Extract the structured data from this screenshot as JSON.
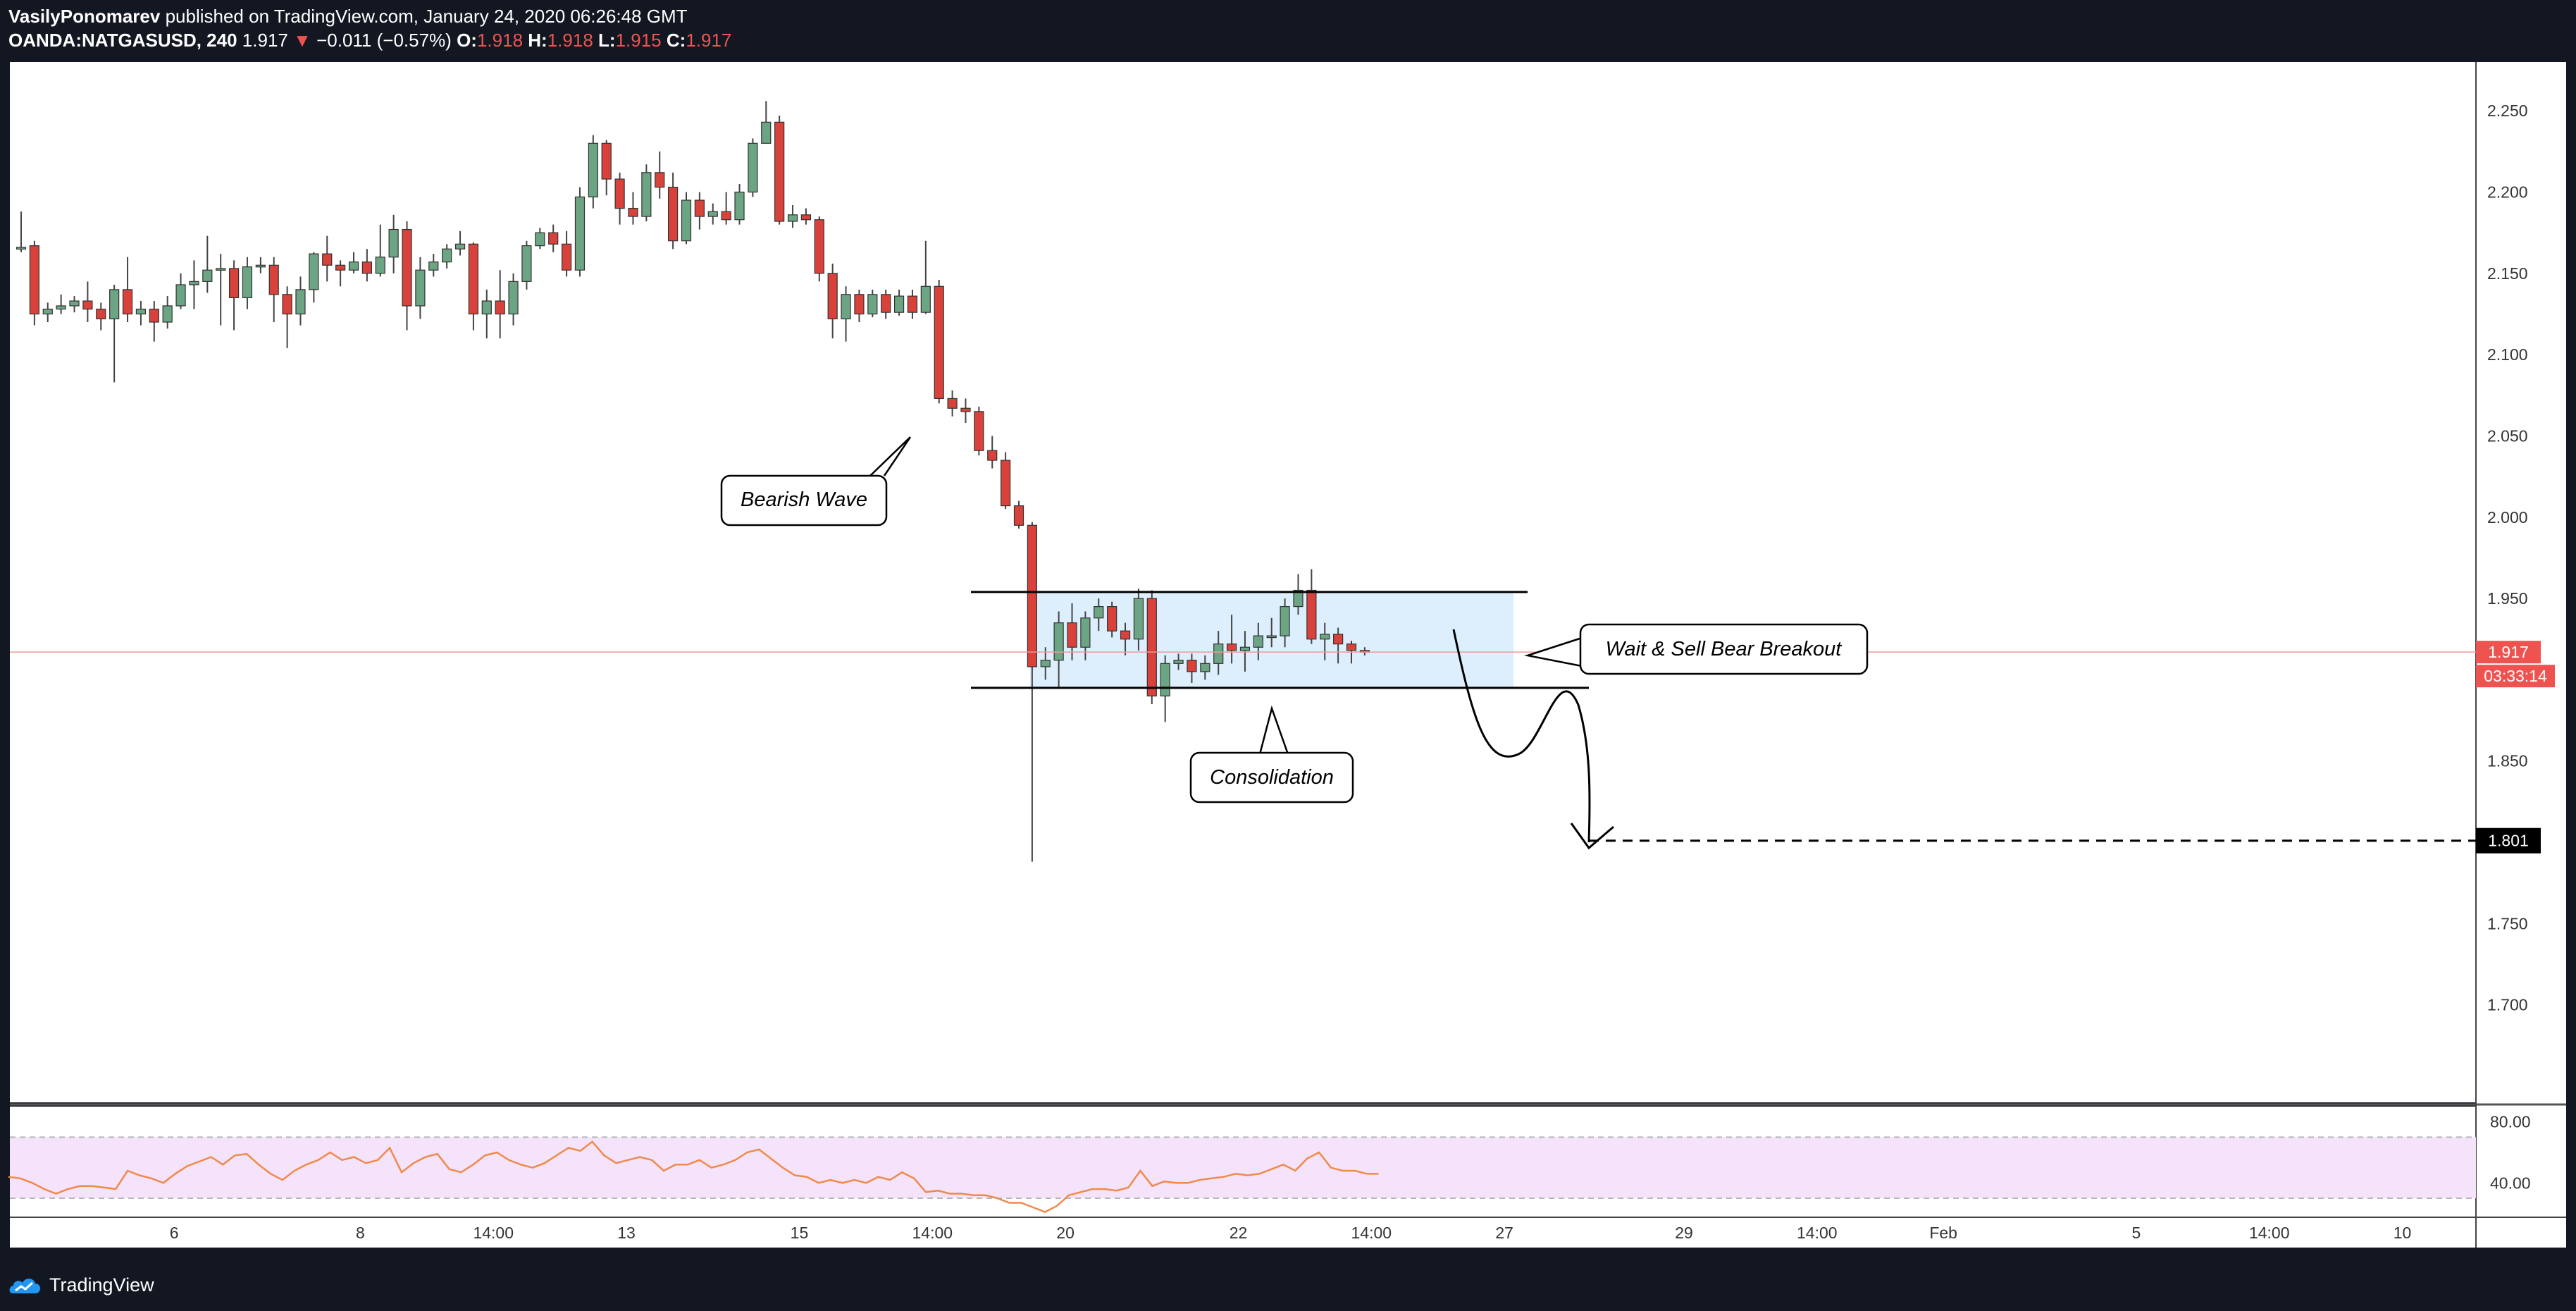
{
  "header": {
    "author": "VasilyPonomarev",
    "published": "published on TradingView.com, January 24, 2020 06:26:48 GMT",
    "symbol": "OANDA:NATGASUSD, 240",
    "last": "1.917",
    "change_arrow": "▼",
    "change": "−0.011 (−0.57%)",
    "o_label": "O:",
    "o": "1.918",
    "h_label": "H:",
    "h": "1.918",
    "l_label": "L:",
    "l": "1.915",
    "c_label": "C:",
    "c": "1.917"
  },
  "footer": {
    "brand": "TradingView"
  },
  "colors": {
    "bull": "#6ba583",
    "bear": "#d9423a",
    "rsi": "#f08a4b",
    "box": "#ddeefc",
    "rsi_band": "#f4e3fb"
  },
  "chart_data": {
    "type": "candlestick",
    "price_ylim": [
      1.64,
      2.28
    ],
    "price_ticks": [
      "2.250",
      "2.200",
      "2.150",
      "2.100",
      "2.050",
      "2.000",
      "1.950",
      "1.900",
      "1.850",
      "1.800",
      "1.750",
      "1.700"
    ],
    "x_ticks": [
      {
        "label": "6",
        "i": 11.5
      },
      {
        "label": "8",
        "i": 25.5
      },
      {
        "label": "14:00",
        "i": 35.5
      },
      {
        "label": "13",
        "i": 45.5
      },
      {
        "label": "15",
        "i": 58.5
      },
      {
        "label": "14:00",
        "i": 68.5
      },
      {
        "label": "20",
        "i": 78.5
      },
      {
        "label": "22",
        "i": 91.5
      },
      {
        "label": "14:00",
        "i": 101.5
      },
      {
        "label": "27",
        "i": 111.5
      },
      {
        "label": "29",
        "i": 125
      },
      {
        "label": "14:00",
        "i": 135
      },
      {
        "label": "Feb",
        "i": 144.5
      },
      {
        "label": "5",
        "i": 159
      },
      {
        "label": "14:00",
        "i": 169
      },
      {
        "label": "10",
        "i": 179
      }
    ],
    "candles": [
      [
        2.166,
        2.166,
        2.188,
        2.163
      ],
      [
        2.167,
        2.125,
        2.17,
        2.118
      ],
      [
        2.125,
        2.128,
        2.132,
        2.12
      ],
      [
        2.128,
        2.13,
        2.137,
        2.125
      ],
      [
        2.13,
        2.133,
        2.136,
        2.126
      ],
      [
        2.133,
        2.128,
        2.145,
        2.12
      ],
      [
        2.128,
        2.122,
        2.132,
        2.115
      ],
      [
        2.122,
        2.14,
        2.143,
        2.083
      ],
      [
        2.14,
        2.125,
        2.16,
        2.12
      ],
      [
        2.125,
        2.128,
        2.133,
        2.118
      ],
      [
        2.128,
        2.12,
        2.133,
        2.108
      ],
      [
        2.12,
        2.13,
        2.136,
        2.116
      ],
      [
        2.13,
        2.143,
        2.15,
        2.128
      ],
      [
        2.143,
        2.145,
        2.158,
        2.128
      ],
      [
        2.145,
        2.152,
        2.173,
        2.138
      ],
      [
        2.152,
        2.153,
        2.162,
        2.118
      ],
      [
        2.153,
        2.135,
        2.158,
        2.115
      ],
      [
        2.135,
        2.154,
        2.16,
        2.128
      ],
      [
        2.154,
        2.155,
        2.16,
        2.15
      ],
      [
        2.155,
        2.137,
        2.16,
        2.12
      ],
      [
        2.137,
        2.125,
        2.142,
        2.104
      ],
      [
        2.125,
        2.14,
        2.148,
        2.118
      ],
      [
        2.14,
        2.162,
        2.163,
        2.132
      ],
      [
        2.162,
        2.155,
        2.173,
        2.145
      ],
      [
        2.155,
        2.152,
        2.158,
        2.142
      ],
      [
        2.152,
        2.157,
        2.163,
        2.15
      ],
      [
        2.157,
        2.15,
        2.165,
        2.145
      ],
      [
        2.15,
        2.16,
        2.18,
        2.148
      ],
      [
        2.16,
        2.177,
        2.186,
        2.15
      ],
      [
        2.177,
        2.13,
        2.182,
        2.115
      ],
      [
        2.13,
        2.152,
        2.16,
        2.122
      ],
      [
        2.152,
        2.157,
        2.162,
        2.148
      ],
      [
        2.157,
        2.165,
        2.168,
        2.153
      ],
      [
        2.165,
        2.168,
        2.176,
        2.161
      ],
      [
        2.168,
        2.125,
        2.169,
        2.115
      ],
      [
        2.125,
        2.133,
        2.14,
        2.11
      ],
      [
        2.133,
        2.125,
        2.152,
        2.11
      ],
      [
        2.125,
        2.145,
        2.15,
        2.118
      ],
      [
        2.145,
        2.167,
        2.17,
        2.14
      ],
      [
        2.167,
        2.175,
        2.178,
        2.165
      ],
      [
        2.175,
        2.168,
        2.18,
        2.163
      ],
      [
        2.168,
        2.152,
        2.176,
        2.148
      ],
      [
        2.152,
        2.197,
        2.203,
        2.148
      ],
      [
        2.197,
        2.23,
        2.235,
        2.19
      ],
      [
        2.23,
        2.208,
        2.232,
        2.198
      ],
      [
        2.208,
        2.19,
        2.212,
        2.18
      ],
      [
        2.19,
        2.185,
        2.2,
        2.18
      ],
      [
        2.185,
        2.212,
        2.217,
        2.182
      ],
      [
        2.212,
        2.203,
        2.225,
        2.196
      ],
      [
        2.203,
        2.17,
        2.212,
        2.165
      ],
      [
        2.17,
        2.195,
        2.2,
        2.168
      ],
      [
        2.195,
        2.185,
        2.2,
        2.177
      ],
      [
        2.185,
        2.188,
        2.193,
        2.18
      ],
      [
        2.188,
        2.183,
        2.2,
        2.18
      ],
      [
        2.183,
        2.2,
        2.205,
        2.18
      ],
      [
        2.2,
        2.23,
        2.233,
        2.197
      ],
      [
        2.23,
        2.243,
        2.256,
        2.23
      ],
      [
        2.243,
        2.182,
        2.247,
        2.18
      ],
      [
        2.182,
        2.186,
        2.192,
        2.178
      ],
      [
        2.186,
        2.183,
        2.19,
        2.18
      ],
      [
        2.183,
        2.15,
        2.185,
        2.145
      ],
      [
        2.15,
        2.122,
        2.156,
        2.11
      ],
      [
        2.122,
        2.137,
        2.142,
        2.108
      ],
      [
        2.137,
        2.125,
        2.14,
        2.12
      ],
      [
        2.125,
        2.137,
        2.14,
        2.123
      ],
      [
        2.137,
        2.126,
        2.14,
        2.122
      ],
      [
        2.126,
        2.136,
        2.14,
        2.124
      ],
      [
        2.136,
        2.126,
        2.14,
        2.122
      ],
      [
        2.126,
        2.142,
        2.17,
        2.125
      ],
      [
        2.142,
        2.073,
        2.146,
        2.07
      ],
      [
        2.073,
        2.067,
        2.078,
        2.062
      ],
      [
        2.067,
        2.065,
        2.073,
        2.058
      ],
      [
        2.065,
        2.041,
        2.068,
        2.038
      ],
      [
        2.041,
        2.035,
        2.05,
        2.03
      ],
      [
        2.035,
        2.007,
        2.04,
        2.005
      ],
      [
        2.007,
        1.995,
        2.01,
        1.993
      ],
      [
        1.995,
        1.908,
        1.997,
        1.788
      ],
      [
        1.908,
        1.912,
        1.92,
        1.9
      ],
      [
        1.912,
        1.935,
        1.942,
        1.895
      ],
      [
        1.935,
        1.92,
        1.947,
        1.912
      ],
      [
        1.92,
        1.938,
        1.942,
        1.912
      ],
      [
        1.938,
        1.945,
        1.95,
        1.93
      ],
      [
        1.945,
        1.93,
        1.948,
        1.926
      ],
      [
        1.93,
        1.925,
        1.935,
        1.915
      ],
      [
        1.925,
        1.95,
        1.956,
        1.918
      ],
      [
        1.95,
        1.89,
        1.955,
        1.885
      ],
      [
        1.89,
        1.91,
        1.915,
        1.874
      ],
      [
        1.91,
        1.912,
        1.916,
        1.906
      ],
      [
        1.912,
        1.905,
        1.916,
        1.898
      ],
      [
        1.905,
        1.91,
        1.915,
        1.9
      ],
      [
        1.91,
        1.922,
        1.93,
        1.903
      ],
      [
        1.922,
        1.918,
        1.94,
        1.91
      ],
      [
        1.918,
        1.92,
        1.93,
        1.905
      ],
      [
        1.92,
        1.927,
        1.935,
        1.912
      ],
      [
        1.927,
        1.927,
        1.938,
        1.92
      ],
      [
        1.927,
        1.945,
        1.95,
        1.92
      ],
      [
        1.945,
        1.955,
        1.965,
        1.94
      ],
      [
        1.955,
        1.925,
        1.968,
        1.922
      ],
      [
        1.925,
        1.928,
        1.935,
        1.912
      ],
      [
        1.928,
        1.922,
        1.932,
        1.91
      ],
      [
        1.922,
        1.918,
        1.924,
        1.91
      ],
      [
        1.918,
        1.917,
        1.92,
        1.915
      ]
    ],
    "rsi": {
      "ylim": [
        18,
        90
      ],
      "ticks": [
        "80.00",
        "40.00"
      ],
      "band": [
        30,
        70
      ],
      "values": [
        44,
        43,
        40,
        36,
        33,
        36,
        38,
        38,
        37,
        36,
        48,
        45,
        43,
        40,
        46,
        51,
        54,
        57,
        52,
        58,
        59,
        52,
        46,
        42,
        48,
        52,
        55,
        60,
        55,
        57,
        53,
        55,
        63,
        47,
        53,
        57,
        59,
        49,
        47,
        52,
        58,
        60,
        55,
        52,
        50,
        53,
        58,
        63,
        61,
        67,
        58,
        53,
        55,
        57,
        55,
        48,
        52,
        52,
        55,
        50,
        52,
        55,
        60,
        62,
        56,
        50,
        45,
        44,
        40,
        42,
        40,
        42,
        40,
        44,
        42,
        47,
        43,
        34,
        35,
        33,
        33,
        32,
        32,
        30,
        27,
        27,
        24,
        21,
        25,
        32,
        34,
        36,
        36,
        35,
        37,
        48,
        38,
        41,
        40,
        40,
        42,
        43,
        44,
        46,
        45,
        46,
        49,
        52,
        48,
        56,
        60,
        50,
        48,
        48,
        46,
        46
      ]
    },
    "current_price": 1.917,
    "current_price_label": "1.917",
    "countdown": "03:33:14",
    "target_price": 1.801,
    "target_label": "1.801",
    "range_top": 1.954,
    "range_bottom": 1.895,
    "annotations": [
      {
        "text": "Bearish Wave",
        "name": "bearish-wave-callout"
      },
      {
        "text": "Wait & Sell Bear Breakout",
        "name": "sell-breakout-callout"
      },
      {
        "text": "Consolidation",
        "name": "consolidation-callout"
      }
    ]
  }
}
